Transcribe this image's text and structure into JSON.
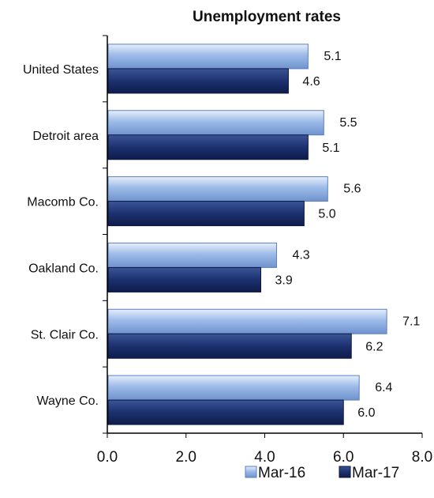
{
  "chart_data": {
    "type": "bar",
    "orientation": "horizontal",
    "title": "Unemployment rates",
    "categories": [
      "United States",
      "Detroit area",
      "Macomb Co.",
      "Oakland Co.",
      "St. Clair Co.",
      "Wayne Co."
    ],
    "series": [
      {
        "name": "Mar-16",
        "values": [
          5.1,
          5.5,
          5.6,
          4.3,
          7.1,
          6.4
        ],
        "color": "#8fb3e6"
      },
      {
        "name": "Mar-17",
        "values": [
          4.6,
          5.1,
          5.0,
          3.9,
          6.2,
          6.0
        ],
        "color": "#1f3470"
      }
    ],
    "value_labels": [
      [
        "5.1",
        "5.5",
        "5.6",
        "4.3",
        "7.1",
        "6.4"
      ],
      [
        "4.6",
        "5.1",
        "5.0",
        "3.9",
        "6.2",
        "6.0"
      ]
    ],
    "xlim": [
      0,
      8
    ],
    "x_ticks": [
      "0.0",
      "2.0",
      "4.0",
      "6.0",
      "8.0"
    ],
    "grid": false,
    "legend": "bottom-right"
  }
}
